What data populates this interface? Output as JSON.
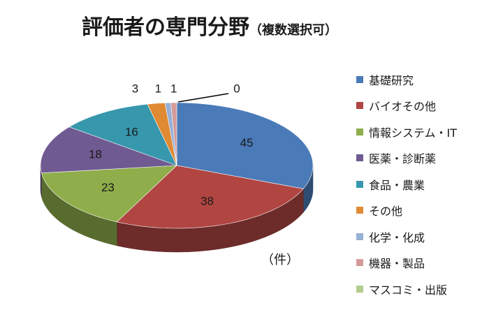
{
  "title": {
    "main": "評価者の専門分野",
    "sub": "（複数選択可）"
  },
  "unit_label": "（件）",
  "chart_data": {
    "type": "pie",
    "title": "評価者の専門分野（複数選択可）",
    "legend_position": "right",
    "slices": [
      {
        "label": "基礎研究",
        "value": 45,
        "color": "#4a7ab8"
      },
      {
        "label": "バイオその他",
        "value": 38,
        "color": "#b04542"
      },
      {
        "label": "情報システム・IT",
        "value": 23,
        "color": "#8fae4b"
      },
      {
        "label": "医薬・診断薬",
        "value": 18,
        "color": "#705a92"
      },
      {
        "label": "食品・農業",
        "value": 16,
        "color": "#3797ad"
      },
      {
        "label": "その他",
        "value": 3,
        "color": "#e08a34"
      },
      {
        "label": "化学・化成",
        "value": 1,
        "color": "#98b0d6"
      },
      {
        "label": "機器・製品",
        "value": 1,
        "color": "#d49a9a"
      },
      {
        "label": "マスコミ・出版",
        "value": 0,
        "color": "#b5cc8c"
      }
    ]
  }
}
